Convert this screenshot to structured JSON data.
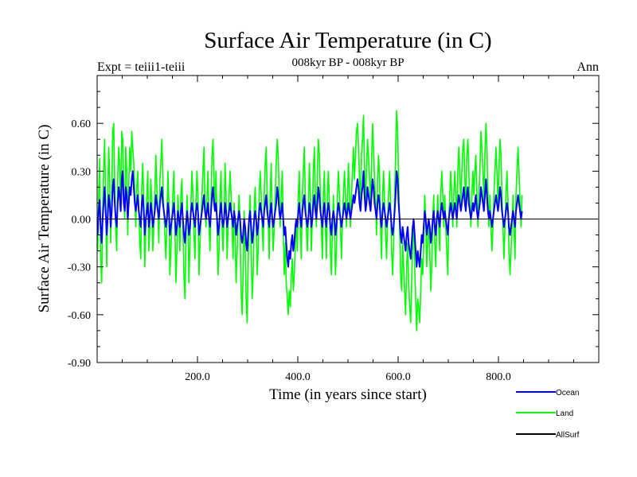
{
  "header": {
    "title": "Surface Air Temperature (in C)",
    "subtitle": "008kyr BP - 008kyr BP",
    "left_label": "Expt = teiii1-teiii",
    "right_label": "Ann"
  },
  "chart_data": {
    "type": "line",
    "xlabel": "Time (in years since start)",
    "ylabel": "Surface Air Temperature (in C)",
    "xlim": [
      0,
      1000
    ],
    "ylim": [
      -0.9,
      0.9
    ],
    "xticks": [
      200,
      400,
      600,
      800
    ],
    "xtick_labels": [
      "200.0",
      "400.0",
      "600.0",
      "800.0"
    ],
    "yticks": [
      -0.9,
      -0.6,
      -0.3,
      0.0,
      0.3,
      0.6
    ],
    "ytick_labels": [
      "-0.90",
      "-0.60",
      "-0.30",
      "0.00",
      "0.30",
      "0.60"
    ],
    "grid": false,
    "legend_position": "bottom-right",
    "x_step": 2,
    "x_start": 1,
    "series": [
      {
        "name": "Ocean",
        "color": "#0000ff",
        "values": [
          -0.1,
          0.05,
          0.12,
          -0.05,
          -0.15,
          0.0,
          0.1,
          0.2,
          0.05,
          -0.1,
          0.0,
          0.15,
          0.1,
          -0.05,
          0.05,
          0.2,
          0.25,
          0.1,
          0.0,
          -0.05,
          0.1,
          0.2,
          0.15,
          0.05,
          0.25,
          0.3,
          0.1,
          0.05,
          0.2,
          0.15,
          0.0,
          0.1,
          0.2,
          0.15,
          0.25,
          0.3,
          0.2,
          0.1,
          0.05,
          0.1,
          0.15,
          0.05,
          0.0,
          -0.05,
          0.1,
          0.15,
          0.05,
          -0.1,
          0.0,
          0.05,
          0.1,
          -0.05,
          0.0,
          0.1,
          0.05,
          -0.05,
          0.0,
          0.05,
          0.15,
          0.1,
          0.05,
          0.0,
          0.1,
          0.15,
          0.2,
          0.1,
          0.05,
          0.0,
          -0.05,
          0.0,
          0.1,
          0.05,
          -0.1,
          -0.05,
          0.0,
          0.05,
          0.1,
          0.0,
          -0.1,
          -0.05,
          0.05,
          0.0,
          -0.05,
          0.05,
          0.1,
          0.0,
          -0.1,
          -0.15,
          -0.05,
          0.05,
          0.0,
          -0.1,
          -0.05,
          0.05,
          0.1,
          0.05,
          0.0,
          -0.05,
          0.05,
          0.1,
          0.05,
          -0.1,
          -0.05,
          0.0,
          0.05,
          0.1,
          0.15,
          0.05,
          0.0,
          0.05,
          0.1,
          0.0,
          -0.05,
          0.05,
          0.15,
          0.2,
          0.1,
          0.05,
          0.1,
          0.0,
          -0.1,
          -0.05,
          0.05,
          0.1,
          0.0,
          -0.05,
          0.0,
          0.1,
          0.05,
          -0.05,
          0.0,
          0.05,
          0.1,
          0.05,
          0.0,
          -0.05,
          0.05,
          0.0,
          -0.1,
          -0.05,
          0.0,
          0.05,
          0.0,
          -0.1,
          -0.15,
          -0.1,
          0.0,
          -0.05,
          -0.15,
          -0.2,
          -0.1,
          0.0,
          0.05,
          -0.05,
          -0.15,
          -0.1,
          0.0,
          0.05,
          0.0,
          -0.1,
          -0.05,
          0.05,
          0.1,
          0.05,
          0.0,
          -0.05,
          0.05,
          0.1,
          0.15,
          0.05,
          0.0,
          -0.05,
          0.05,
          0.1,
          0.0,
          -0.05,
          0.0,
          0.05,
          0.1,
          0.2,
          0.15,
          0.05,
          0.0,
          0.05,
          0.1,
          0.0,
          -0.1,
          -0.05,
          -0.15,
          -0.25,
          -0.3,
          -0.2,
          -0.25,
          -0.15,
          -0.1,
          -0.2,
          -0.15,
          -0.05,
          0.0,
          -0.05,
          0.05,
          0.1,
          0.0,
          -0.05,
          0.05,
          0.1,
          0.15,
          0.05,
          0.0,
          -0.05,
          0.0,
          0.1,
          0.05,
          -0.05,
          0.0,
          0.1,
          0.15,
          0.05,
          0.0,
          0.1,
          0.2,
          0.15,
          0.05,
          0.0,
          -0.05,
          0.05,
          0.1,
          0.0,
          -0.05,
          0.05,
          0.1,
          0.05,
          -0.05,
          -0.1,
          0.0,
          0.05,
          0.0,
          -0.1,
          -0.05,
          0.05,
          0.1,
          0.05,
          0.0,
          -0.05,
          0.0,
          0.05,
          0.1,
          0.05,
          0.0,
          0.05,
          0.1,
          0.05,
          0.0,
          0.05,
          0.1,
          0.15,
          0.1,
          0.15,
          0.2,
          0.25,
          0.2,
          0.1,
          0.05,
          0.15,
          0.2,
          0.3,
          0.15,
          0.05,
          0.1,
          0.2,
          0.15,
          0.1,
          0.05,
          0.15,
          0.25,
          0.2,
          0.1,
          0.05,
          0.0,
          0.1,
          0.15,
          0.1,
          0.0,
          -0.05,
          0.05,
          0.1,
          0.05,
          0.0,
          -0.05,
          0.0,
          0.05,
          0.1,
          0.05,
          -0.05,
          -0.1,
          -0.05,
          0.05,
          0.15,
          0.3,
          0.25,
          0.1,
          0.0,
          -0.1,
          -0.15,
          -0.05,
          -0.1,
          -0.15,
          -0.2,
          -0.1,
          -0.05,
          -0.15,
          -0.2,
          -0.25,
          -0.15,
          -0.05,
          0.0,
          -0.1,
          -0.2,
          -0.3,
          -0.2,
          -0.25,
          -0.3,
          -0.2,
          -0.1,
          -0.15,
          -0.05,
          0.05,
          0.0,
          -0.1,
          -0.05,
          0.0,
          -0.05,
          -0.15,
          -0.1,
          0.0,
          0.05,
          -0.05,
          -0.1,
          0.0,
          0.05,
          0.0,
          -0.05,
          0.05,
          0.1,
          0.05,
          0.0,
          0.05,
          0.0,
          -0.05,
          -0.1,
          0.0,
          0.05,
          0.1,
          0.05,
          0.0,
          0.05,
          0.1,
          0.05,
          0.0,
          0.1,
          0.15,
          0.1,
          0.05,
          0.1,
          0.15,
          0.2,
          0.1,
          0.05,
          0.15,
          0.2,
          0.1,
          0.05,
          0.0,
          0.05,
          0.1,
          0.05,
          0.1,
          0.15,
          0.05,
          0.0,
          0.05,
          0.1,
          0.2,
          0.15,
          0.1,
          0.05,
          0.15,
          0.25,
          0.15,
          0.05,
          0.0,
          0.05,
          0.0,
          -0.05,
          0.0,
          0.05,
          0.1,
          0.15,
          0.1,
          0.05,
          0.1,
          0.2,
          0.15,
          0.05,
          0.0,
          -0.05,
          0.0,
          0.05,
          0.1,
          0.05,
          -0.05,
          -0.1,
          -0.05,
          0.0,
          0.05,
          0.0,
          -0.05,
          0.05,
          0.1,
          0.15,
          0.1,
          0.05,
          0.0,
          0.05
        ]
      },
      {
        "name": "Land",
        "color": "#00ff00",
        "values": [
          -0.2,
          0.15,
          0.38,
          -0.25,
          -0.4,
          0.05,
          0.3,
          0.5,
          0.1,
          -0.3,
          0.05,
          0.45,
          0.25,
          -0.15,
          0.1,
          0.55,
          0.6,
          0.2,
          -0.05,
          -0.2,
          0.25,
          0.45,
          0.35,
          0.05,
          0.55,
          0.5,
          0.15,
          0.0,
          0.45,
          0.3,
          -0.1,
          0.2,
          0.45,
          0.3,
          0.55,
          0.45,
          0.35,
          0.15,
          -0.05,
          0.2,
          0.3,
          0.05,
          -0.15,
          -0.25,
          0.2,
          0.35,
          0.1,
          -0.3,
          -0.05,
          0.15,
          0.3,
          -0.2,
          -0.05,
          0.25,
          0.1,
          -0.2,
          -0.05,
          0.15,
          0.4,
          0.2,
          0.05,
          -0.15,
          0.25,
          0.35,
          0.5,
          0.25,
          0.05,
          -0.1,
          -0.25,
          -0.05,
          0.3,
          0.1,
          -0.35,
          -0.2,
          0.0,
          0.15,
          0.3,
          -0.05,
          -0.4,
          -0.2,
          0.15,
          0.0,
          -0.2,
          0.15,
          0.25,
          -0.05,
          -0.35,
          -0.5,
          -0.15,
          0.15,
          0.0,
          -0.4,
          -0.15,
          0.1,
          0.3,
          0.15,
          -0.1,
          -0.25,
          0.1,
          0.3,
          0.15,
          -0.35,
          -0.15,
          0.0,
          0.15,
          0.3,
          0.45,
          0.1,
          -0.05,
          0.15,
          0.3,
          -0.05,
          -0.2,
          0.1,
          0.4,
          0.5,
          0.25,
          0.05,
          0.3,
          -0.05,
          -0.35,
          -0.2,
          0.15,
          0.3,
          -0.05,
          -0.2,
          0.0,
          0.35,
          0.15,
          -0.25,
          -0.05,
          0.15,
          0.3,
          0.15,
          -0.05,
          -0.25,
          0.1,
          -0.1,
          -0.4,
          -0.2,
          0.0,
          0.15,
          -0.05,
          -0.45,
          -0.6,
          -0.35,
          0.05,
          -0.2,
          -0.5,
          -0.65,
          -0.3,
          0.0,
          0.15,
          -0.2,
          -0.5,
          -0.35,
          0.05,
          0.2,
          0.0,
          -0.35,
          -0.2,
          0.15,
          0.3,
          0.15,
          -0.05,
          -0.2,
          0.15,
          0.35,
          0.45,
          0.15,
          0.0,
          -0.25,
          0.15,
          0.35,
          0.0,
          -0.2,
          -0.05,
          0.15,
          0.35,
          0.5,
          0.4,
          0.15,
          -0.05,
          0.15,
          0.3,
          -0.05,
          -0.35,
          -0.15,
          -0.4,
          -0.5,
          -0.6,
          -0.45,
          -0.55,
          -0.35,
          -0.25,
          -0.45,
          -0.35,
          -0.15,
          0.0,
          -0.2,
          0.15,
          0.3,
          -0.05,
          -0.25,
          0.15,
          0.3,
          0.45,
          0.15,
          -0.05,
          -0.2,
          0.0,
          0.35,
          0.15,
          -0.2,
          0.0,
          0.3,
          0.45,
          0.15,
          -0.05,
          0.3,
          0.5,
          0.4,
          0.15,
          -0.05,
          -0.25,
          0.15,
          0.3,
          -0.05,
          -0.25,
          0.15,
          0.3,
          0.1,
          -0.2,
          -0.35,
          -0.05,
          0.15,
          -0.05,
          -0.35,
          -0.2,
          0.15,
          0.3,
          0.15,
          -0.05,
          -0.25,
          0.0,
          0.15,
          0.3,
          0.15,
          -0.05,
          0.15,
          0.35,
          0.15,
          -0.05,
          0.15,
          0.3,
          0.45,
          0.25,
          0.4,
          0.55,
          0.6,
          0.45,
          0.25,
          0.1,
          0.4,
          0.5,
          0.65,
          0.35,
          0.1,
          0.3,
          0.5,
          0.4,
          0.25,
          0.1,
          0.35,
          0.6,
          0.45,
          0.25,
          0.1,
          -0.1,
          0.25,
          0.4,
          0.25,
          -0.05,
          -0.25,
          0.15,
          0.3,
          0.1,
          -0.1,
          -0.25,
          0.0,
          0.15,
          0.3,
          0.1,
          -0.2,
          -0.35,
          -0.15,
          0.15,
          0.4,
          0.68,
          0.55,
          0.25,
          -0.05,
          -0.35,
          -0.45,
          -0.15,
          -0.3,
          -0.45,
          -0.6,
          -0.3,
          -0.15,
          -0.4,
          -0.55,
          -0.65,
          -0.4,
          -0.15,
          0.0,
          -0.3,
          -0.5,
          -0.7,
          -0.5,
          -0.55,
          -0.65,
          -0.45,
          -0.25,
          -0.35,
          -0.15,
          0.15,
          0.0,
          -0.3,
          -0.15,
          0.0,
          -0.2,
          -0.45,
          -0.3,
          0.0,
          0.15,
          -0.15,
          -0.3,
          0.0,
          0.15,
          -0.05,
          -0.2,
          0.15,
          0.3,
          0.15,
          -0.05,
          0.15,
          -0.05,
          -0.2,
          -0.35,
          0.0,
          0.15,
          0.3,
          0.15,
          -0.05,
          0.15,
          0.3,
          0.15,
          -0.05,
          0.3,
          0.45,
          0.3,
          0.1,
          0.3,
          0.45,
          0.5,
          0.25,
          0.1,
          0.4,
          0.5,
          0.3,
          0.1,
          -0.05,
          0.15,
          0.3,
          0.15,
          0.3,
          0.4,
          0.15,
          -0.05,
          0.15,
          0.3,
          0.55,
          0.45,
          0.3,
          0.1,
          0.4,
          0.6,
          0.45,
          0.15,
          -0.05,
          0.15,
          -0.05,
          -0.2,
          -0.05,
          0.15,
          0.3,
          0.45,
          0.3,
          0.1,
          0.3,
          0.5,
          0.4,
          0.15,
          -0.05,
          -0.25,
          -0.05,
          0.15,
          0.3,
          0.1,
          -0.2,
          -0.35,
          -0.2,
          -0.05,
          0.15,
          -0.05,
          -0.25,
          0.15,
          0.3,
          0.45,
          0.3,
          0.1,
          -0.05,
          0.15
        ]
      },
      {
        "name": "AllSurf",
        "color": "#000000",
        "values": []
      }
    ]
  }
}
